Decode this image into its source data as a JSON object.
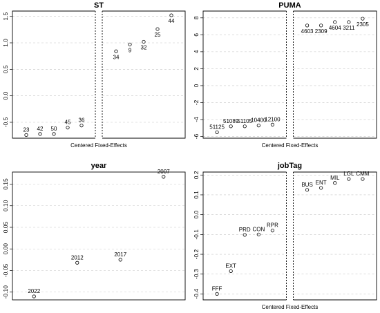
{
  "chart_data": [
    {
      "type": "scatter",
      "title": "ST",
      "xlabel": "Centered Fixed-Effects",
      "ylim": [
        -0.8,
        1.6
      ],
      "yticks": [
        -0.5,
        0.0,
        0.5,
        1.0,
        1.5
      ],
      "tick_labels": [
        "-0.5",
        "0.0",
        "0.5",
        "1.0",
        "1.5"
      ],
      "grid": true,
      "split_after": 5,
      "points": [
        {
          "label": "23",
          "y": -0.74
        },
        {
          "label": "42",
          "y": -0.72
        },
        {
          "label": "50",
          "y": -0.72
        },
        {
          "label": "45",
          "y": -0.6
        },
        {
          "label": "36",
          "y": -0.56
        },
        {
          "label": "34",
          "y": 0.84
        },
        {
          "label": "9",
          "y": 0.97
        },
        {
          "label": "32",
          "y": 1.02
        },
        {
          "label": "25",
          "y": 1.26
        },
        {
          "label": "44",
          "y": 1.52
        }
      ]
    },
    {
      "type": "scatter",
      "title": "PUMA",
      "xlabel": "Centered Fixed-Effects",
      "ylim": [
        -6.2,
        8.8
      ],
      "yticks": [
        -6,
        -4,
        -2,
        0,
        2,
        4,
        6,
        8
      ],
      "tick_labels": [
        "-6",
        "-4",
        "-2",
        "0",
        "2",
        "4",
        "6",
        "8"
      ],
      "grid": true,
      "split_after": 5,
      "points": [
        {
          "label": "51125",
          "y": -5.5
        },
        {
          "label": "51089",
          "y": -4.8
        },
        {
          "label": "51105",
          "y": -4.8
        },
        {
          "label": "10400",
          "y": -4.7
        },
        {
          "label": "12100",
          "y": -4.6
        },
        {
          "label": "4603",
          "y": 7.1
        },
        {
          "label": "2309",
          "y": 7.1
        },
        {
          "label": "4604",
          "y": 7.5
        },
        {
          "label": "3211",
          "y": 7.5
        },
        {
          "label": "2305",
          "y": 7.9
        }
      ]
    },
    {
      "type": "scatter",
      "title": "year",
      "xlabel": "",
      "ylim": [
        -0.118,
        0.178
      ],
      "yticks": [
        -0.1,
        -0.05,
        0.0,
        0.05,
        0.1,
        0.15
      ],
      "tick_labels": [
        "-0.10",
        "-0.05",
        "0.00",
        "0.05",
        "0.10",
        "0.15"
      ],
      "grid": true,
      "split_after": null,
      "points": [
        {
          "label": "2022",
          "y": -0.11
        },
        {
          "label": "2012",
          "y": -0.032
        },
        {
          "label": "2017",
          "y": -0.025
        },
        {
          "label": "2007",
          "y": 0.167
        }
      ]
    },
    {
      "type": "scatter",
      "title": "jobTag",
      "xlabel": "Centered Fixed-Effects",
      "ylim": [
        -0.43,
        0.215
      ],
      "yticks": [
        -0.4,
        -0.3,
        -0.2,
        -0.1,
        0.0,
        0.1,
        0.2
      ],
      "tick_labels": [
        "-0.4",
        "-0.3",
        "-0.2",
        "-0.1",
        "0.0",
        "0.1",
        "0.2"
      ],
      "grid": true,
      "split_after": 5,
      "points": [
        {
          "label": "FFF",
          "y": -0.4
        },
        {
          "label": "EXT",
          "y": -0.285
        },
        {
          "label": "PRD",
          "y": -0.102
        },
        {
          "label": "CON",
          "y": -0.1
        },
        {
          "label": "RPR",
          "y": -0.08
        },
        {
          "label": "BUS",
          "y": 0.125
        },
        {
          "label": "ENT",
          "y": 0.135
        },
        {
          "label": "MIL",
          "y": 0.16
        },
        {
          "label": "LGL",
          "y": 0.18
        },
        {
          "label": "CMM",
          "y": 0.18
        }
      ]
    }
  ]
}
